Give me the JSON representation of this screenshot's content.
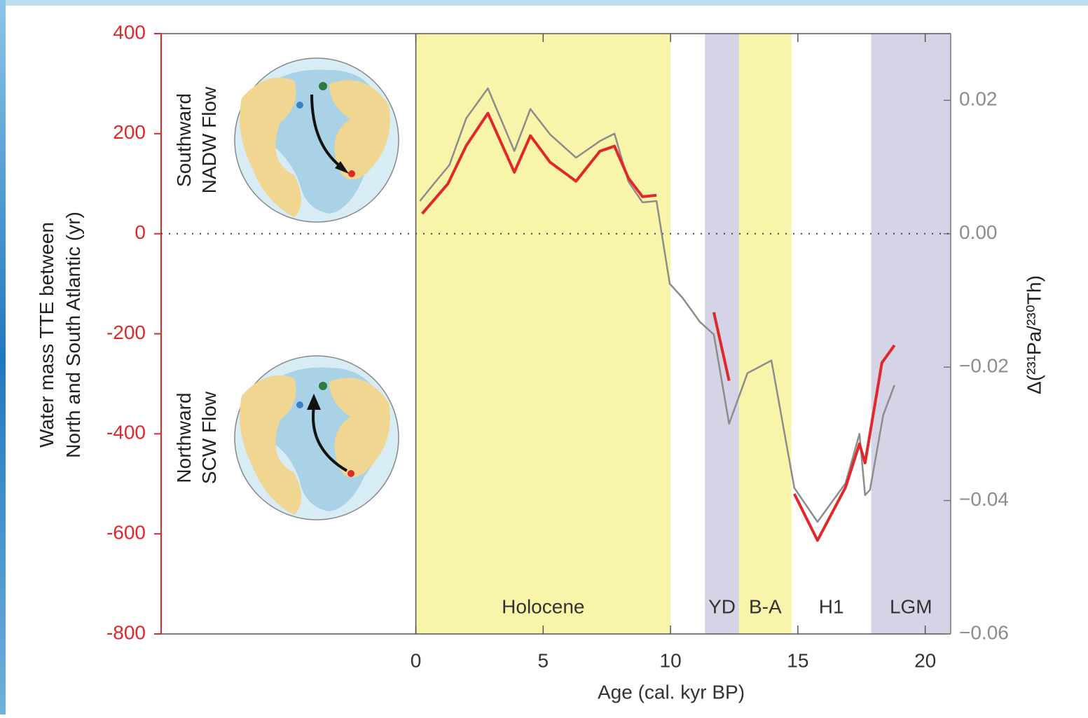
{
  "chart_data": {
    "type": "line",
    "x_label": "Age (cal. kyr BP)",
    "y_label": [
      "Water mass TTE between",
      "North and South Atlantic (yr)"
    ],
    "y2_label": "Δ(²³¹Pa/²³⁰Th)",
    "xlim": [
      -10,
      21
    ],
    "xticks": [
      0,
      5,
      10,
      15,
      20
    ],
    "ylim": [
      -800,
      400
    ],
    "yticks": [
      -800,
      -600,
      -400,
      -200,
      0,
      200,
      400
    ],
    "y2lim": [
      -0.06,
      0.03
    ],
    "y2ticks": [
      {
        "value": -0.06,
        "label": "−0.06"
      },
      {
        "value": -0.04,
        "label": "−0.04"
      },
      {
        "value": -0.02,
        "label": "−0.02"
      },
      {
        "value": 0,
        "label": "0.00"
      },
      {
        "value": 0.02,
        "label": "0.02"
      }
    ],
    "y_axis_color": "#e0282a",
    "zero_line": true,
    "regions": [
      {
        "label": "Holocene",
        "start": 0,
        "end": 10,
        "color": "#f8f4a9"
      },
      {
        "label": "YD",
        "start": 11.35,
        "end": 12.69,
        "color": "#d5d3e6"
      },
      {
        "label": "B-A",
        "start": 12.69,
        "end": 14.75,
        "color": "#f8f4a9"
      },
      {
        "label": "H1",
        "start": 14.75,
        "end": 17.88,
        "color": "#ffffff"
      },
      {
        "label": "LGM",
        "start": 17.88,
        "end": 21,
        "color": "#d5d3e6"
      }
    ],
    "series": [
      {
        "color": "#8c8c8c",
        "axis": "y2",
        "x": [
          0.16,
          0.71,
          1.32,
          1.98,
          2.83,
          3.87,
          4.5,
          5.27,
          6.29,
          7.23,
          7.8,
          8.35,
          8.9,
          9.45,
          9.97,
          10.47,
          11.15,
          11.7,
          12.3,
          13.02,
          13.96,
          14.86,
          15.77,
          16.87,
          17.42,
          17.64,
          17.83,
          18.35,
          18.79
        ],
        "values": [
          0.0049,
          0.0075,
          0.0103,
          0.0173,
          0.0218,
          0.0124,
          0.0187,
          0.0149,
          0.0114,
          0.0139,
          0.015,
          0.0078,
          0.0047,
          0.0049,
          -0.0075,
          -0.0096,
          -0.0132,
          -0.0151,
          -0.0285,
          -0.0209,
          -0.019,
          -0.0381,
          -0.0432,
          -0.0374,
          -0.03,
          -0.0392,
          -0.0384,
          -0.0272,
          -0.0227
        ]
      },
      {
        "color": "#e0282a",
        "axis": "y",
        "x": [
          0.25,
          1.26,
          1.98,
          2.83,
          3.87,
          4.5,
          5.27,
          6.29,
          7.23,
          7.8,
          8.35,
          8.9,
          9.45,
          null,
          11.7,
          12.3,
          null,
          14.86,
          15.77,
          16.87,
          17.42,
          17.64,
          18.3,
          18.79
        ],
        "values": [
          40,
          100,
          176,
          241,
          123,
          196,
          143,
          105,
          165,
          175,
          111,
          74,
          77,
          null,
          -157,
          -294,
          null,
          -520,
          -613,
          -507,
          -420,
          -458,
          -258,
          -223
        ]
      }
    ],
    "annotations": [
      {
        "lines": [
          "Southward",
          "NADW Flow"
        ]
      },
      {
        "lines": [
          "Northward",
          "SCW Flow"
        ]
      }
    ]
  }
}
